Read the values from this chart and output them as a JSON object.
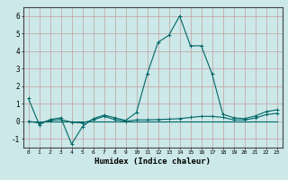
{
  "xlabel": "Humidex (Indice chaleur)",
  "x": [
    0,
    1,
    2,
    3,
    4,
    5,
    6,
    7,
    8,
    9,
    10,
    11,
    12,
    13,
    14,
    15,
    16,
    17,
    18,
    19,
    20,
    21,
    22,
    23
  ],
  "y_main": [
    1.3,
    -0.2,
    0.1,
    0.2,
    -1.3,
    -0.3,
    0.15,
    0.35,
    0.2,
    0.05,
    0.5,
    2.7,
    4.5,
    4.9,
    6.0,
    4.3,
    4.3,
    2.7,
    0.4,
    0.2,
    0.15,
    0.3,
    0.55,
    0.65
  ],
  "y_near_flat": [
    0.0,
    -0.1,
    0.05,
    0.1,
    -0.05,
    -0.1,
    0.08,
    0.28,
    0.1,
    0.0,
    0.08,
    0.08,
    0.1,
    0.12,
    0.15,
    0.22,
    0.28,
    0.28,
    0.22,
    0.08,
    0.08,
    0.18,
    0.38,
    0.45
  ],
  "y_flat": [
    0.0,
    0.0,
    0.0,
    0.0,
    0.0,
    0.0,
    0.0,
    0.0,
    0.0,
    0.0,
    0.0,
    0.0,
    0.0,
    0.0,
    0.0,
    0.0,
    0.0,
    0.0,
    0.0,
    0.0,
    0.0,
    0.0,
    0.0,
    0.0
  ],
  "line_color": "#006666",
  "bg_color": "#cce8e8",
  "grid_color": "#c4a0a0",
  "ylim": [
    -1.5,
    6.5
  ],
  "xlim": [
    -0.5,
    23.5
  ],
  "yticks": [
    -1,
    0,
    1,
    2,
    3,
    4,
    5,
    6
  ],
  "xticks": [
    0,
    1,
    2,
    3,
    4,
    5,
    6,
    7,
    8,
    9,
    10,
    11,
    12,
    13,
    14,
    15,
    16,
    17,
    18,
    19,
    20,
    21,
    22,
    23
  ]
}
